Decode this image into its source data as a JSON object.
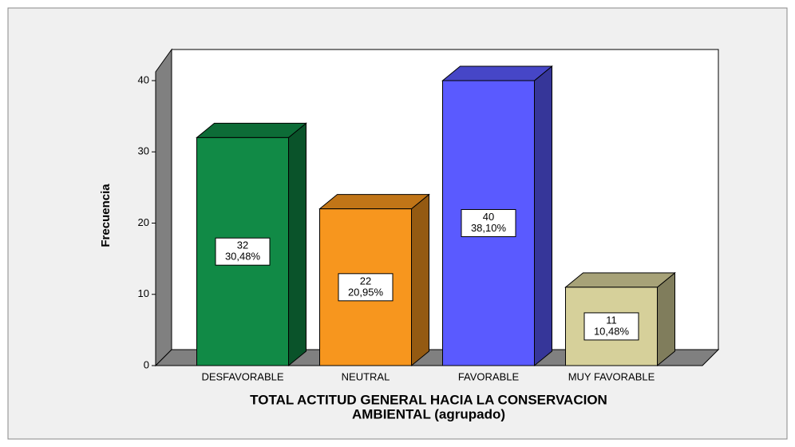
{
  "chart_data": {
    "type": "bar3d",
    "y_label": "Frecuencia",
    "x_label": [
      "TOTAL ACTITUD GENERAL HACIA LA CONSERVACION",
      "AMBIENTAL (agrupado)"
    ],
    "categories": [
      "DESFAVORABLE",
      "NEUTRAL",
      "FAVORABLE",
      "MUY FAVORABLE"
    ],
    "values": [
      32,
      22,
      40,
      11
    ],
    "percentages": [
      30.48,
      20.95,
      38.1,
      10.48
    ],
    "percentage_labels": [
      "30,48%",
      "20,95%",
      "38,10%",
      "10,48%"
    ],
    "colors": [
      "#118a46",
      "#f7961e",
      "#5a5aff",
      "#d6d09a"
    ],
    "ylim": [
      0,
      40
    ],
    "yticks": [
      0,
      10,
      20,
      30,
      40
    ]
  }
}
